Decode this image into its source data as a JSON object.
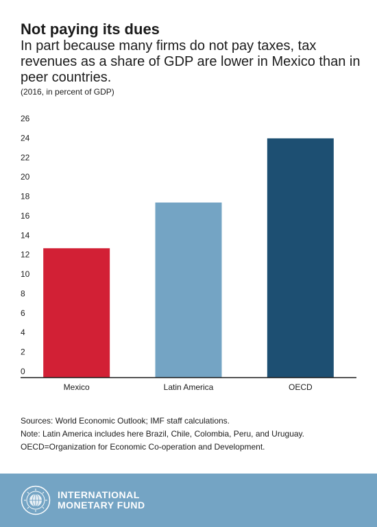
{
  "header": {
    "title": "Not paying its dues",
    "subtitle": "In part because many firms do not pay taxes, tax revenues as a share of GDP are lower in Mexico than in peer countries.",
    "unit_note": "(2016, in percent of GDP)"
  },
  "chart_data": {
    "type": "bar",
    "categories": [
      "Mexico",
      "Latin America",
      "OECD"
    ],
    "values": [
      13.3,
      18.0,
      24.6
    ],
    "colors": [
      "#d22035",
      "#74a4c4",
      "#1d4f72"
    ],
    "ylim": [
      0,
      26
    ],
    "yticks": [
      0,
      2,
      4,
      6,
      8,
      10,
      12,
      14,
      16,
      18,
      20,
      22,
      24,
      26
    ],
    "grid": false,
    "xlabel": "",
    "ylabel": ""
  },
  "notes": {
    "sources": "Sources: World Economic Outlook; IMF staff calculations.",
    "note": "Note: Latin America includes here Brazil, Chile, Colombia, Peru, and Uruguay.",
    "abbr": "OECD=Organization for Economic Co-operation and Development."
  },
  "footer": {
    "org_line1": "INTERNATIONAL",
    "org_line2": "MONETARY FUND",
    "seal_icon": "imf-seal-icon",
    "background_color": "#74a4c4"
  }
}
